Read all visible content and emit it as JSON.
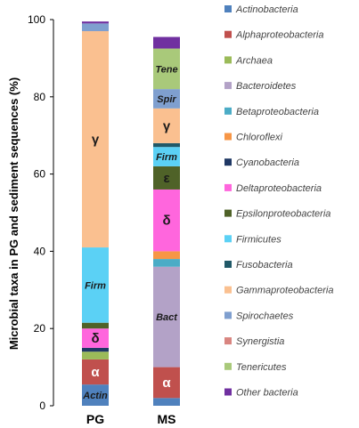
{
  "chart_data": {
    "type": "bar",
    "stacked": true,
    "ylabel": "Microbial taxa in PG and sediment sequences (%)",
    "xlabel": "",
    "ylim": [
      0,
      100
    ],
    "yticks": [
      0,
      20,
      40,
      60,
      80,
      100
    ],
    "grid": false,
    "legend_position": "right",
    "categories": [
      "PG",
      "MS"
    ],
    "series": [
      {
        "name": "Actinobacteria",
        "color": "#4F81BD",
        "values": [
          5.5,
          2
        ]
      },
      {
        "name": "Alphaproteobacteria",
        "color": "#C0504D",
        "values": [
          6.5,
          8
        ]
      },
      {
        "name": "Archaea",
        "color": "#9BBB59",
        "values": [
          2,
          0
        ]
      },
      {
        "name": "Bacteroidetes",
        "color": "#B3A2C7",
        "values": [
          0,
          26
        ]
      },
      {
        "name": "Betaproteobacteria",
        "color": "#4BACC6",
        "values": [
          0,
          2
        ]
      },
      {
        "name": "Chloroflexi",
        "color": "#F79646",
        "values": [
          0,
          2
        ]
      },
      {
        "name": "Cyanobacteria",
        "color": "#1F3864",
        "values": [
          1,
          0
        ]
      },
      {
        "name": "Deltaproteobacteria",
        "color": "#FF66DD",
        "values": [
          5,
          16
        ]
      },
      {
        "name": "Epsilonproteobacteria",
        "color": "#4F6228",
        "values": [
          1.5,
          6
        ]
      },
      {
        "name": "Firmicutes",
        "color": "#5BD1F5",
        "values": [
          19.5,
          5
        ]
      },
      {
        "name": "Fusobacteria",
        "color": "#215968",
        "values": [
          0,
          1
        ]
      },
      {
        "name": "Gammaproteobacteria",
        "color": "#FAC090",
        "values": [
          56,
          9
        ]
      },
      {
        "name": "Spirochaetes",
        "color": "#7F9FCF",
        "values": [
          2,
          5
        ]
      },
      {
        "name": "Synergistia",
        "color": "#D98580",
        "values": [
          0,
          0
        ]
      },
      {
        "name": "Tenericutes",
        "color": "#A9C97A",
        "values": [
          0,
          10.5
        ]
      },
      {
        "name": "Other bacteria",
        "color": "#7030A0",
        "values": [
          0.5,
          3
        ]
      }
    ],
    "segment_labels": [
      {
        "category": "PG",
        "series": "Actinobacteria",
        "text": "Actin"
      },
      {
        "category": "PG",
        "series": "Alphaproteobacteria",
        "text": "α"
      },
      {
        "category": "PG",
        "series": "Deltaproteobacteria",
        "text": "δ"
      },
      {
        "category": "PG",
        "series": "Firmicutes",
        "text": "Firm"
      },
      {
        "category": "PG",
        "series": "Gammaproteobacteria",
        "text": "γ"
      },
      {
        "category": "MS",
        "series": "Alphaproteobacteria",
        "text": "α"
      },
      {
        "category": "MS",
        "series": "Bacteroidetes",
        "text": "Bact"
      },
      {
        "category": "MS",
        "series": "Deltaproteobacteria",
        "text": "δ"
      },
      {
        "category": "MS",
        "series": "Epsilonproteobacteria",
        "text": "ε"
      },
      {
        "category": "MS",
        "series": "Firmicutes",
        "text": "Firm"
      },
      {
        "category": "MS",
        "series": "Gammaproteobacteria",
        "text": "γ"
      },
      {
        "category": "MS",
        "series": "Spirochaetes",
        "text": "Spir"
      },
      {
        "category": "MS",
        "series": "Tenericutes",
        "text": "Tene"
      }
    ]
  }
}
